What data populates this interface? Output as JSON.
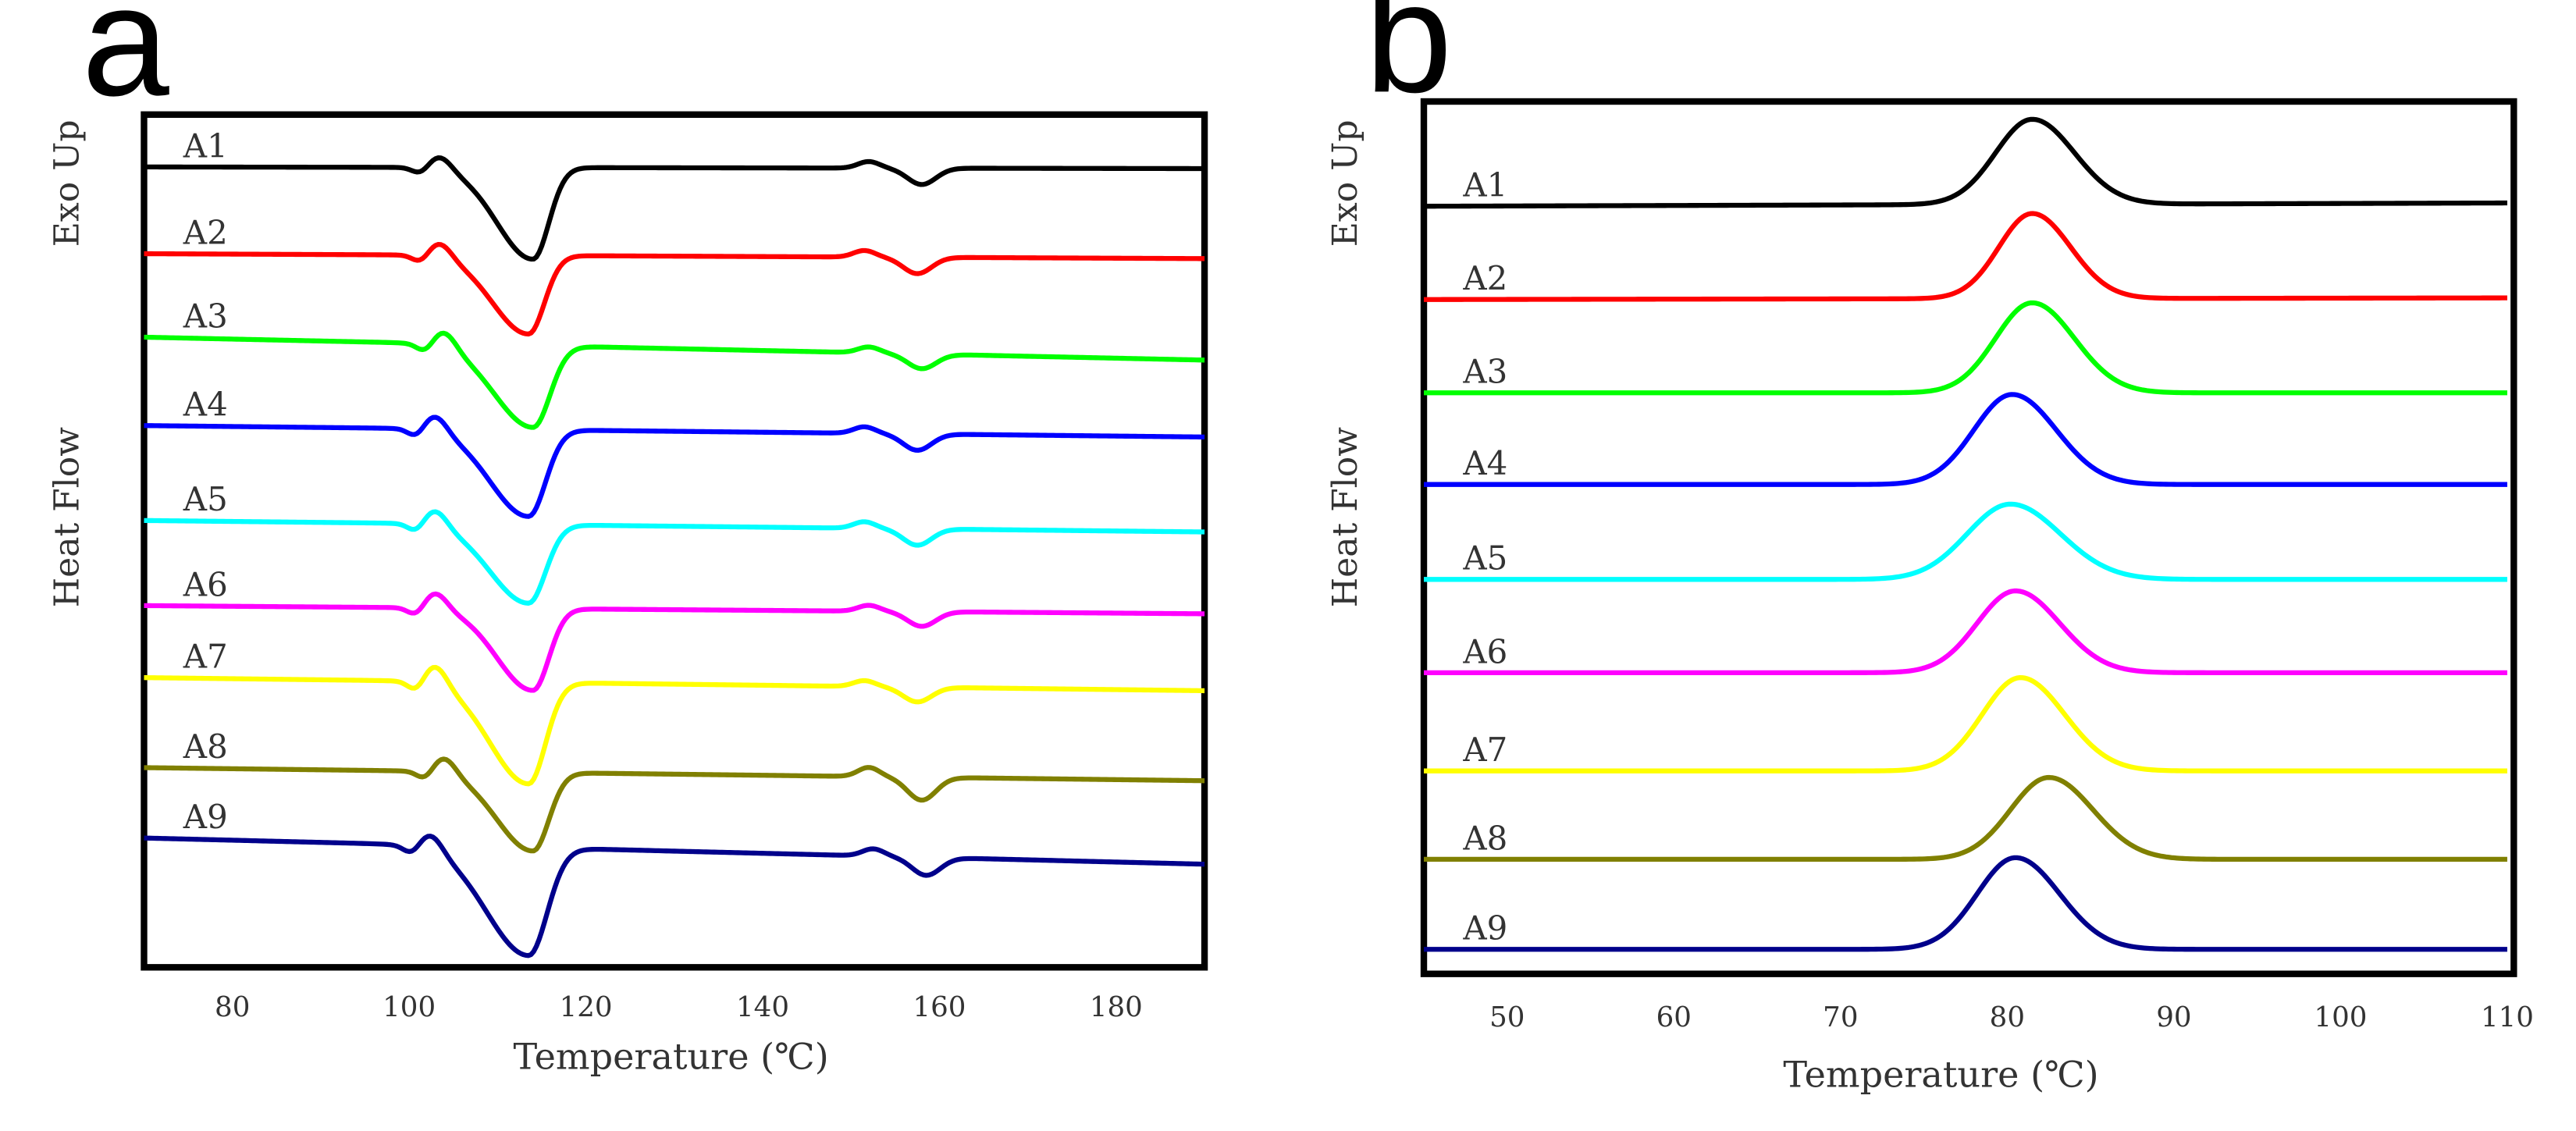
{
  "chart_data": [
    {
      "type": "line",
      "panel_label": "a",
      "xlabel": "Temperature (℃)",
      "ylabel_top": "Exo Up",
      "ylabel_bottom": "Heat Flow",
      "xlim": [
        70,
        190
      ],
      "xticks": [
        80,
        100,
        120,
        140,
        160,
        180
      ],
      "curve_kind": "melting",
      "series": [
        {
          "name": "A1",
          "color": "#000000",
          "baseline": 102,
          "tilt": 1,
          "peak_x": 114.0,
          "peak_depth": 56,
          "peak_width": 3.0,
          "bump_x": 103.5,
          "bump_h": 8,
          "dip2_x": 158,
          "dip2_depth": 10
        },
        {
          "name": "A2",
          "color": "#ff0000",
          "baseline": 155,
          "tilt": 3,
          "peak_x": 113.5,
          "peak_depth": 48,
          "peak_width": 3.0,
          "bump_x": 103.5,
          "bump_h": 9,
          "dip2_x": 157.5,
          "dip2_depth": 10
        },
        {
          "name": "A3",
          "color": "#00ff00",
          "baseline": 206,
          "tilt": 14,
          "peak_x": 114.0,
          "peak_depth": 50,
          "peak_width": 3.2,
          "bump_x": 104.0,
          "bump_h": 10,
          "dip2_x": 158,
          "dip2_depth": 9
        },
        {
          "name": "A4",
          "color": "#0000ff",
          "baseline": 260,
          "tilt": 7,
          "peak_x": 113.5,
          "peak_depth": 53,
          "peak_width": 3.2,
          "bump_x": 103.0,
          "bump_h": 10,
          "dip2_x": 157.5,
          "dip2_depth": 10
        },
        {
          "name": "A5",
          "color": "#00ffff",
          "baseline": 318,
          "tilt": 7,
          "peak_x": 113.5,
          "peak_depth": 48,
          "peak_width": 3.2,
          "bump_x": 103.0,
          "bump_h": 10,
          "dip2_x": 157.5,
          "dip2_depth": 10
        },
        {
          "name": "A6",
          "color": "#ff00ff",
          "baseline": 370,
          "tilt": 5,
          "peak_x": 114.0,
          "peak_depth": 50,
          "peak_width": 3.0,
          "bump_x": 103.0,
          "bump_h": 10,
          "dip2_x": 158,
          "dip2_depth": 9
        },
        {
          "name": "A7",
          "color": "#ffff00",
          "baseline": 414,
          "tilt": 8,
          "peak_x": 113.5,
          "peak_depth": 62,
          "peak_width": 3.2,
          "bump_x": 103.0,
          "bump_h": 12,
          "dip2_x": 157.5,
          "dip2_depth": 9
        },
        {
          "name": "A8",
          "color": "#808000",
          "baseline": 469,
          "tilt": 8,
          "peak_x": 114.0,
          "peak_depth": 48,
          "peak_width": 3.0,
          "bump_x": 104.0,
          "bump_h": 10,
          "dip2_x": 158,
          "dip2_depth": 14
        },
        {
          "name": "A9",
          "color": "#00008b",
          "baseline": 512,
          "tilt": 16,
          "peak_x": 113.5,
          "peak_depth": 66,
          "peak_width": 3.5,
          "bump_x": 102.5,
          "bump_h": 10,
          "dip2_x": 158.5,
          "dip2_depth": 11
        }
      ]
    },
    {
      "type": "line",
      "panel_label": "b",
      "xlabel": "Temperature (℃)",
      "ylabel_top": "Exo Up",
      "ylabel_bottom": "Heat Flow",
      "xlim": [
        45,
        110
      ],
      "xticks": [
        50,
        60,
        70,
        80,
        90,
        100,
        110
      ],
      "curve_kind": "crystallization",
      "series": [
        {
          "name": "A1",
          "color": "#000000",
          "baseline": 126,
          "tilt": -2,
          "peak_x": 81.5,
          "peak_height": 52,
          "peak_width": 2.2
        },
        {
          "name": "A2",
          "color": "#ff0000",
          "baseline": 183,
          "tilt": -1,
          "peak_x": 81.5,
          "peak_height": 52,
          "peak_width": 2.0
        },
        {
          "name": "A3",
          "color": "#00ff00",
          "baseline": 240,
          "tilt": 0,
          "peak_x": 81.5,
          "peak_height": 55,
          "peak_width": 2.2
        },
        {
          "name": "A4",
          "color": "#0000ff",
          "baseline": 296,
          "tilt": 0,
          "peak_x": 80.3,
          "peak_height": 55,
          "peak_width": 2.3
        },
        {
          "name": "A5",
          "color": "#00ffff",
          "baseline": 354,
          "tilt": 0,
          "peak_x": 80.2,
          "peak_height": 46,
          "peak_width": 2.6
        },
        {
          "name": "A6",
          "color": "#ff00ff",
          "baseline": 411,
          "tilt": 0,
          "peak_x": 80.5,
          "peak_height": 50,
          "peak_width": 2.3
        },
        {
          "name": "A7",
          "color": "#ffff00",
          "baseline": 471,
          "tilt": 0,
          "peak_x": 80.8,
          "peak_height": 57,
          "peak_width": 2.3
        },
        {
          "name": "A8",
          "color": "#808000",
          "baseline": 525,
          "tilt": 0,
          "peak_x": 82.5,
          "peak_height": 50,
          "peak_width": 2.3
        },
        {
          "name": "A9",
          "color": "#00008b",
          "baseline": 580,
          "tilt": 0,
          "peak_x": 80.5,
          "peak_height": 56,
          "peak_width": 2.3
        }
      ]
    }
  ]
}
